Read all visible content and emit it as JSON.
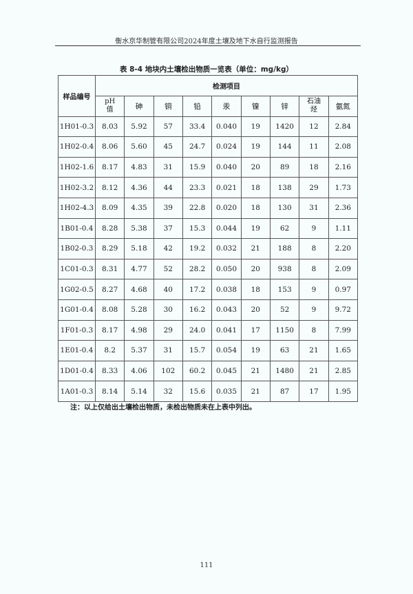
{
  "header": "衡水京华制管有限公司2024年度土壤及地下水自行监测报告",
  "table_title": "表 8-4   地块内土壤检出物质一览表（单位：mg/kg）",
  "table": {
    "sample_header": "样品编号",
    "group_header": "检测项目",
    "columns": [
      "pH 值",
      "砷",
      "铜",
      "铅",
      "汞",
      "镍",
      "锌",
      "石油烃",
      "氨氮"
    ],
    "rows": [
      [
        "1H01-0.3",
        "8.03",
        "5.92",
        "57",
        "33.4",
        "0.040",
        "19",
        "1420",
        "12",
        "2.84"
      ],
      [
        "1H02-0.4",
        "8.06",
        "5.60",
        "45",
        "24.7",
        "0.024",
        "19",
        "144",
        "11",
        "2.08"
      ],
      [
        "1H02-1.6",
        "8.17",
        "4.83",
        "31",
        "15.9",
        "0.040",
        "20",
        "89",
        "18",
        "2.16"
      ],
      [
        "1H02-3.2",
        "8.12",
        "4.36",
        "44",
        "23.3",
        "0.021",
        "18",
        "138",
        "29",
        "1.73"
      ],
      [
        "1H02-4.3",
        "8.09",
        "4.35",
        "39",
        "22.8",
        "0.020",
        "18",
        "130",
        "31",
        "2.36"
      ],
      [
        "1B01-0.4",
        "8.28",
        "5.38",
        "37",
        "15.3",
        "0.044",
        "19",
        "62",
        "9",
        "1.11"
      ],
      [
        "1B02-0.3",
        "8.29",
        "5.18",
        "42",
        "19.2",
        "0.032",
        "21",
        "188",
        "8",
        "2.20"
      ],
      [
        "1C01-0.3",
        "8.31",
        "4.77",
        "52",
        "28.2",
        "0.050",
        "20",
        "938",
        "8",
        "2.09"
      ],
      [
        "1G02-0.5",
        "8.27",
        "4.68",
        "40",
        "17.2",
        "0.038",
        "18",
        "153",
        "9",
        "0.97"
      ],
      [
        "1G01-0.4",
        "8.08",
        "5.28",
        "30",
        "16.2",
        "0.043",
        "20",
        "52",
        "9",
        "9.72"
      ],
      [
        "1F01-0.3",
        "8.17",
        "4.98",
        "29",
        "24.0",
        "0.041",
        "17",
        "1150",
        "8",
        "7.99"
      ],
      [
        "1E01-0.4",
        "8.2",
        "5.37",
        "31",
        "15.7",
        "0.054",
        "19",
        "63",
        "21",
        "1.65"
      ],
      [
        "1D01-0.4",
        "8.33",
        "4.06",
        "102",
        "60.2",
        "0.045",
        "21",
        "1480",
        "21",
        "2.85"
      ],
      [
        "1A01-0.3",
        "8.14",
        "5.14",
        "32",
        "15.6",
        "0.035",
        "21",
        "87",
        "17",
        "1.95"
      ]
    ]
  },
  "note": "注：以上仅给出土壤检出物质，未检出物质未在上表中列出。",
  "page_number": "111"
}
